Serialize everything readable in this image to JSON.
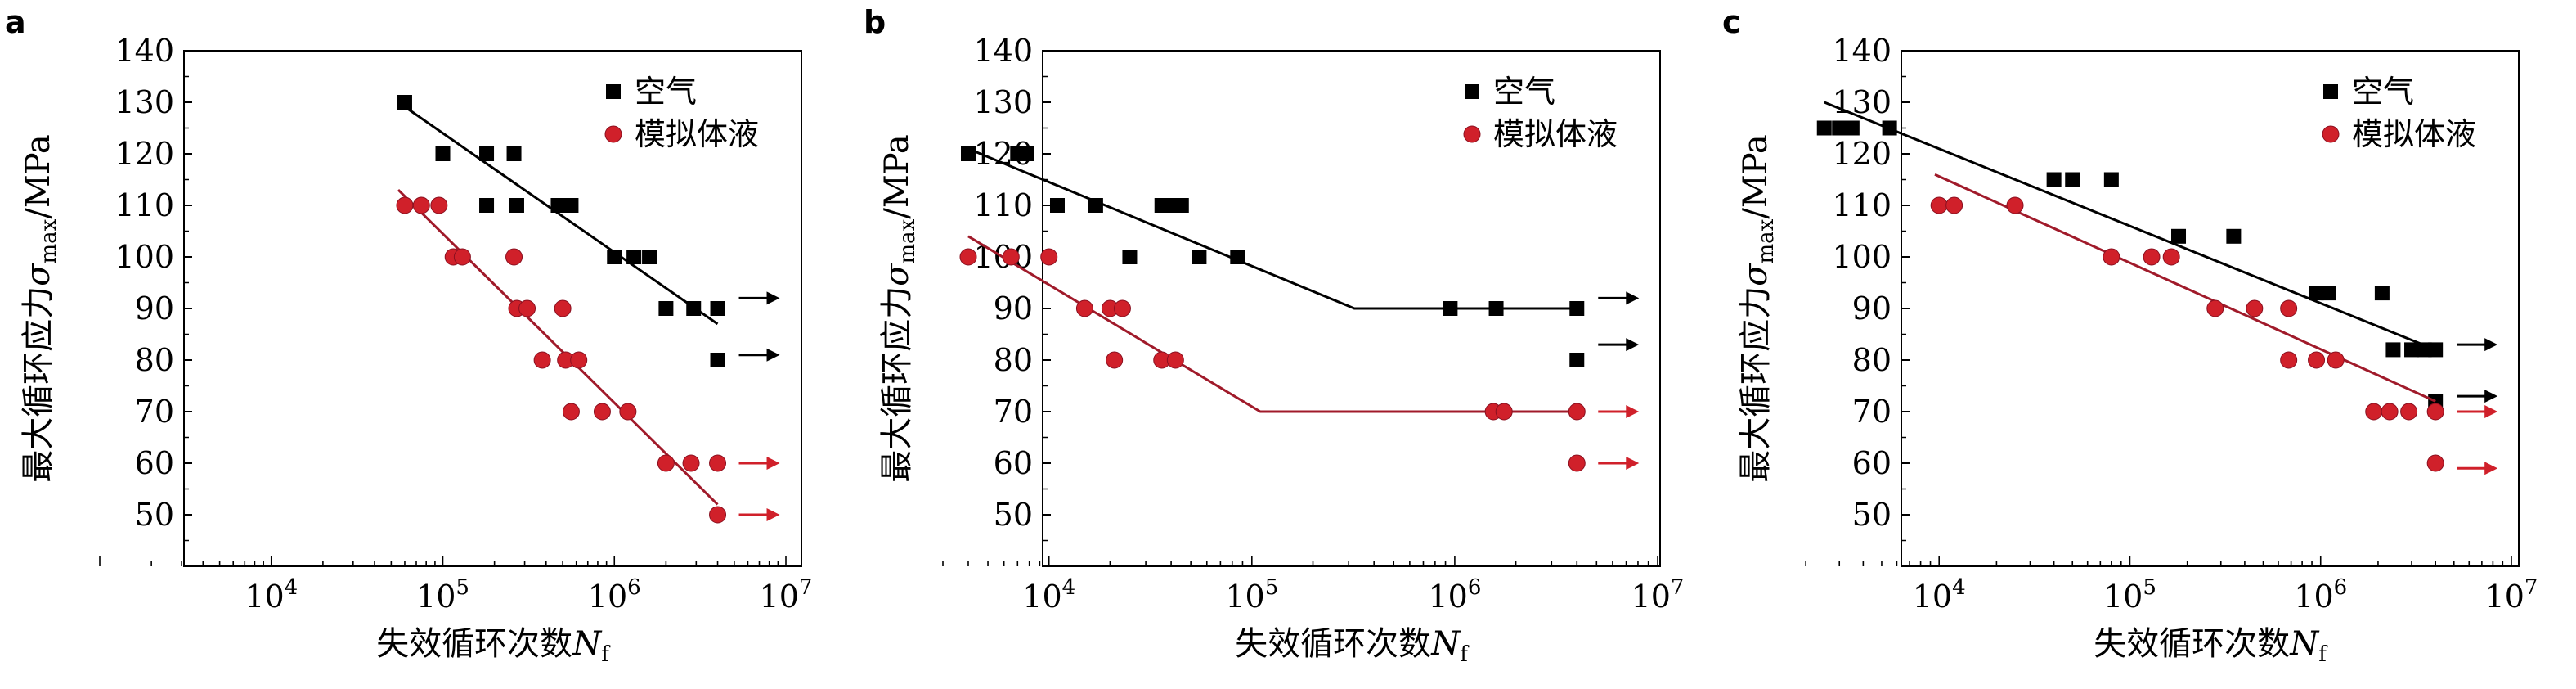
{
  "figure": {
    "panels": [
      "a",
      "b",
      "c"
    ]
  },
  "chart_data": [
    {
      "panel": "a",
      "type": "scatter",
      "xscale": "log",
      "xlim": [
        1000,
        10000000
      ],
      "ylim": [
        40,
        140
      ],
      "xticks": [
        "10^4",
        "10^5",
        "10^6",
        "10^7"
      ],
      "yticks": [
        "50",
        "60",
        "70",
        "80",
        "90",
        "100",
        "110",
        "120",
        "130",
        "140"
      ],
      "xlabel": "失效循环次数N_f",
      "ylabel": "最大循环应力σ_max/MPa",
      "legend": [
        "空气",
        "模拟体液"
      ],
      "legend_position": "top-right",
      "series": [
        {
          "name": "空气",
          "marker": "square",
          "color": "#000000",
          "points": [
            [
              60000,
              130
            ],
            [
              100000,
              120
            ],
            [
              180000,
              120
            ],
            [
              260000,
              120
            ],
            [
              180000,
              110
            ],
            [
              270000,
              110
            ],
            [
              470000,
              110
            ],
            [
              560000,
              110
            ],
            [
              1000000,
              100
            ],
            [
              1300000,
              100
            ],
            [
              1600000,
              100
            ],
            [
              2000000,
              90
            ],
            [
              2900000,
              90
            ],
            [
              4000000,
              90
            ],
            [
              4000000,
              80
            ]
          ],
          "fit": [
            [
              55000,
              130
            ],
            [
              4000000,
              87
            ]
          ],
          "runouts": [
            [
              4000000,
              92
            ],
            [
              4000000,
              81
            ]
          ]
        },
        {
          "name": "模拟体液",
          "marker": "circle",
          "color": "#d0202a",
          "points": [
            [
              60000,
              110
            ],
            [
              75000,
              110
            ],
            [
              95000,
              110
            ],
            [
              115000,
              100
            ],
            [
              130000,
              100
            ],
            [
              260000,
              100
            ],
            [
              270000,
              90
            ],
            [
              310000,
              90
            ],
            [
              500000,
              90
            ],
            [
              380000,
              80
            ],
            [
              520000,
              80
            ],
            [
              620000,
              80
            ],
            [
              560000,
              70
            ],
            [
              850000,
              70
            ],
            [
              1200000,
              70
            ],
            [
              2000000,
              60
            ],
            [
              2800000,
              60
            ],
            [
              4000000,
              60
            ],
            [
              4000000,
              50
            ]
          ],
          "fit": [
            [
              55000,
              113
            ],
            [
              4000000,
              52
            ]
          ],
          "runouts": [
            [
              4000000,
              60
            ],
            [
              4000000,
              50
            ]
          ]
        }
      ]
    },
    {
      "panel": "b",
      "type": "scatter",
      "xscale": "log",
      "xlim": [
        3000,
        10000000
      ],
      "ylim": [
        40,
        140
      ],
      "xticks": [
        "10^4",
        "10^5",
        "10^6",
        "10^7"
      ],
      "yticks": [
        "50",
        "60",
        "70",
        "80",
        "90",
        "100",
        "110",
        "120",
        "130",
        "140"
      ],
      "xlabel": "失效循环次数N_f",
      "ylabel": "最大循环应力σ_max/MPa",
      "legend": [
        "空气",
        "模拟体液"
      ],
      "legend_position": "top-right",
      "series": [
        {
          "name": "空气",
          "marker": "square",
          "color": "#000000",
          "points": [
            [
              4000,
              120
            ],
            [
              7000,
              120
            ],
            [
              7800,
              120
            ],
            [
              11000,
              110
            ],
            [
              17000,
              110
            ],
            [
              36000,
              110
            ],
            [
              42000,
              110
            ],
            [
              45000,
              110
            ],
            [
              25000,
              100
            ],
            [
              55000,
              100
            ],
            [
              85000,
              100
            ],
            [
              950000,
              90
            ],
            [
              1600000,
              90
            ],
            [
              4000000,
              90
            ],
            [
              4000000,
              80
            ]
          ],
          "fit": [
            [
              4000,
              121
            ],
            [
              320000,
              90
            ],
            [
              4000000,
              90
            ]
          ],
          "runouts": [
            [
              4000000,
              92
            ],
            [
              4000000,
              83
            ]
          ]
        },
        {
          "name": "模拟体液",
          "marker": "circle",
          "color": "#d0202a",
          "points": [
            [
              4000,
              100
            ],
            [
              6500,
              100
            ],
            [
              10000,
              100
            ],
            [
              15000,
              90
            ],
            [
              20000,
              90
            ],
            [
              23000,
              90
            ],
            [
              21000,
              80
            ],
            [
              36000,
              80
            ],
            [
              42000,
              80
            ],
            [
              1550000,
              70
            ],
            [
              1750000,
              70
            ],
            [
              4000000,
              70
            ],
            [
              4000000,
              60
            ]
          ],
          "fit": [
            [
              4000,
              104
            ],
            [
              110000,
              70
            ],
            [
              4000000,
              70
            ]
          ],
          "runouts": [
            [
              4000000,
              70
            ],
            [
              4000000,
              60
            ]
          ]
        }
      ]
    },
    {
      "panel": "c",
      "type": "scatter",
      "xscale": "log",
      "xlim": [
        1500,
        10000000
      ],
      "ylim": [
        40,
        140
      ],
      "xticks": [
        "10^4",
        "10^5",
        "10^6",
        "10^7"
      ],
      "yticks": [
        "50",
        "60",
        "70",
        "80",
        "90",
        "100",
        "110",
        "120",
        "130",
        "140"
      ],
      "xlabel": "失效循环次数N_f",
      "ylabel": "最大循环应力σ_max/MPa",
      "legend": [
        "空气",
        "模拟体液"
      ],
      "legend_position": "top-right",
      "series": [
        {
          "name": "空气",
          "marker": "square",
          "color": "#000000",
          "points": [
            [
              2500,
              125
            ],
            [
              3000,
              125
            ],
            [
              3500,
              125
            ],
            [
              5500,
              125
            ],
            [
              40000,
              115
            ],
            [
              50000,
              115
            ],
            [
              80000,
              115
            ],
            [
              180000,
              104
            ],
            [
              350000,
              104
            ],
            [
              950000,
              93
            ],
            [
              1100000,
              93
            ],
            [
              2100000,
              93
            ],
            [
              2400000,
              82
            ],
            [
              3000000,
              82
            ],
            [
              3500000,
              82
            ],
            [
              4000000,
              82
            ],
            [
              4000000,
              72
            ]
          ],
          "fit": [
            [
              2500,
              130
            ],
            [
              4000000,
              82
            ]
          ],
          "runouts": [
            [
              4000000,
              83
            ],
            [
              4000000,
              73
            ]
          ]
        },
        {
          "name": "模拟体液",
          "marker": "circle",
          "color": "#d0202a",
          "points": [
            [
              10000,
              110
            ],
            [
              12000,
              110
            ],
            [
              25000,
              110
            ],
            [
              80000,
              100
            ],
            [
              130000,
              100
            ],
            [
              165000,
              100
            ],
            [
              280000,
              90
            ],
            [
              450000,
              90
            ],
            [
              680000,
              90
            ],
            [
              680000,
              80
            ],
            [
              950000,
              80
            ],
            [
              1200000,
              80
            ],
            [
              1900000,
              70
            ],
            [
              2300000,
              70
            ],
            [
              2900000,
              70
            ],
            [
              4000000,
              70
            ],
            [
              4000000,
              60
            ]
          ],
          "fit": [
            [
              9500,
              116
            ],
            [
              4000000,
              72
            ]
          ],
          "runouts": [
            [
              4000000,
              70
            ],
            [
              4000000,
              59
            ]
          ]
        }
      ]
    }
  ]
}
